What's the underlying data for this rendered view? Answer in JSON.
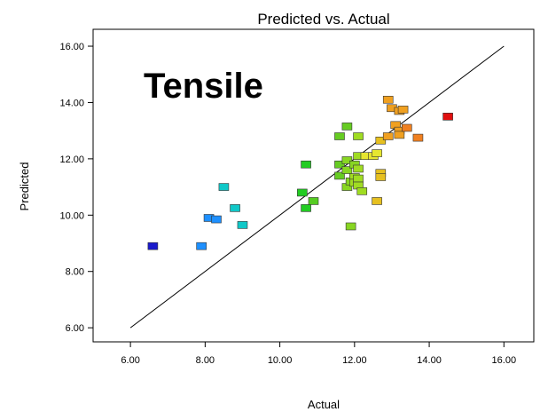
{
  "chart_data": {
    "type": "scatter",
    "title": "Predicted vs. Actual",
    "annotation": "Tensile",
    "xlabel": "Actual",
    "ylabel": "Predicted",
    "xlim": [
      5.0,
      16.8
    ],
    "ylim": [
      5.5,
      16.6
    ],
    "xticks": [
      "6.00",
      "8.00",
      "10.00",
      "12.00",
      "14.00",
      "16.00"
    ],
    "yticks": [
      "6.00",
      "8.00",
      "10.00",
      "12.00",
      "14.00",
      "16.00"
    ],
    "xtick_values": [
      6,
      8,
      10,
      12,
      14,
      16
    ],
    "ytick_values": [
      6,
      8,
      10,
      12,
      14,
      16
    ],
    "reference_line": {
      "from": [
        6,
        6
      ],
      "to": [
        16,
        16
      ],
      "color": "#000000"
    },
    "grid": false,
    "colormap": "predicted value: blue (low) → cyan → green → yellow → orange → red (high)",
    "points": [
      {
        "x": 6.6,
        "y": 8.9,
        "color": "#1a1acc"
      },
      {
        "x": 7.9,
        "y": 8.9,
        "color": "#1e90ff"
      },
      {
        "x": 8.1,
        "y": 9.9,
        "color": "#1e90ff"
      },
      {
        "x": 8.3,
        "y": 9.85,
        "color": "#1e90ff"
      },
      {
        "x": 8.5,
        "y": 11.0,
        "color": "#10c8c8"
      },
      {
        "x": 8.8,
        "y": 10.25,
        "color": "#10c8c8"
      },
      {
        "x": 9.0,
        "y": 9.65,
        "color": "#10c8c8"
      },
      {
        "x": 10.6,
        "y": 10.8,
        "color": "#22cc22"
      },
      {
        "x": 10.7,
        "y": 10.25,
        "color": "#22cc22"
      },
      {
        "x": 10.7,
        "y": 11.8,
        "color": "#22cc22"
      },
      {
        "x": 10.9,
        "y": 10.5,
        "color": "#55cc22"
      },
      {
        "x": 11.6,
        "y": 12.8,
        "color": "#66cc22"
      },
      {
        "x": 11.6,
        "y": 11.8,
        "color": "#66cc22"
      },
      {
        "x": 11.6,
        "y": 11.4,
        "color": "#66cc22"
      },
      {
        "x": 11.8,
        "y": 13.15,
        "color": "#66cc22"
      },
      {
        "x": 11.8,
        "y": 11.95,
        "color": "#88d622"
      },
      {
        "x": 11.8,
        "y": 11.6,
        "color": "#88d622"
      },
      {
        "x": 11.8,
        "y": 11.0,
        "color": "#88d622"
      },
      {
        "x": 11.9,
        "y": 9.6,
        "color": "#88d622"
      },
      {
        "x": 11.9,
        "y": 11.2,
        "color": "#88d622"
      },
      {
        "x": 12.0,
        "y": 11.8,
        "color": "#88d622"
      },
      {
        "x": 12.0,
        "y": 11.35,
        "color": "#a0dc22"
      },
      {
        "x": 12.0,
        "y": 11.15,
        "color": "#a0dc22"
      },
      {
        "x": 12.1,
        "y": 12.8,
        "color": "#a0dc22"
      },
      {
        "x": 12.1,
        "y": 12.1,
        "color": "#a0dc22"
      },
      {
        "x": 12.1,
        "y": 11.65,
        "color": "#a0dc22"
      },
      {
        "x": 12.1,
        "y": 11.3,
        "color": "#a0dc22"
      },
      {
        "x": 12.1,
        "y": 11.05,
        "color": "#a0dc22"
      },
      {
        "x": 12.2,
        "y": 10.85,
        "color": "#a0dc22"
      },
      {
        "x": 12.3,
        "y": 12.1,
        "color": "#e6e630"
      },
      {
        "x": 12.5,
        "y": 12.1,
        "color": "#e6e630"
      },
      {
        "x": 12.6,
        "y": 12.2,
        "color": "#e6e630"
      },
      {
        "x": 12.6,
        "y": 10.5,
        "color": "#e6c020"
      },
      {
        "x": 12.7,
        "y": 12.65,
        "color": "#e6c020"
      },
      {
        "x": 12.7,
        "y": 11.5,
        "color": "#e6c020"
      },
      {
        "x": 12.7,
        "y": 11.35,
        "color": "#e6c020"
      },
      {
        "x": 12.9,
        "y": 14.1,
        "color": "#f0a020"
      },
      {
        "x": 12.9,
        "y": 12.8,
        "color": "#f0a020"
      },
      {
        "x": 13.0,
        "y": 13.8,
        "color": "#f0a020"
      },
      {
        "x": 13.1,
        "y": 13.2,
        "color": "#f0a020"
      },
      {
        "x": 13.2,
        "y": 13.0,
        "color": "#f0a020"
      },
      {
        "x": 13.2,
        "y": 12.85,
        "color": "#f0a020"
      },
      {
        "x": 13.2,
        "y": 13.7,
        "color": "#f0a020"
      },
      {
        "x": 13.3,
        "y": 13.75,
        "color": "#f0a020"
      },
      {
        "x": 13.4,
        "y": 13.1,
        "color": "#f08020"
      },
      {
        "x": 13.7,
        "y": 12.75,
        "color": "#f08020"
      },
      {
        "x": 14.5,
        "y": 13.5,
        "color": "#e01010"
      }
    ]
  }
}
